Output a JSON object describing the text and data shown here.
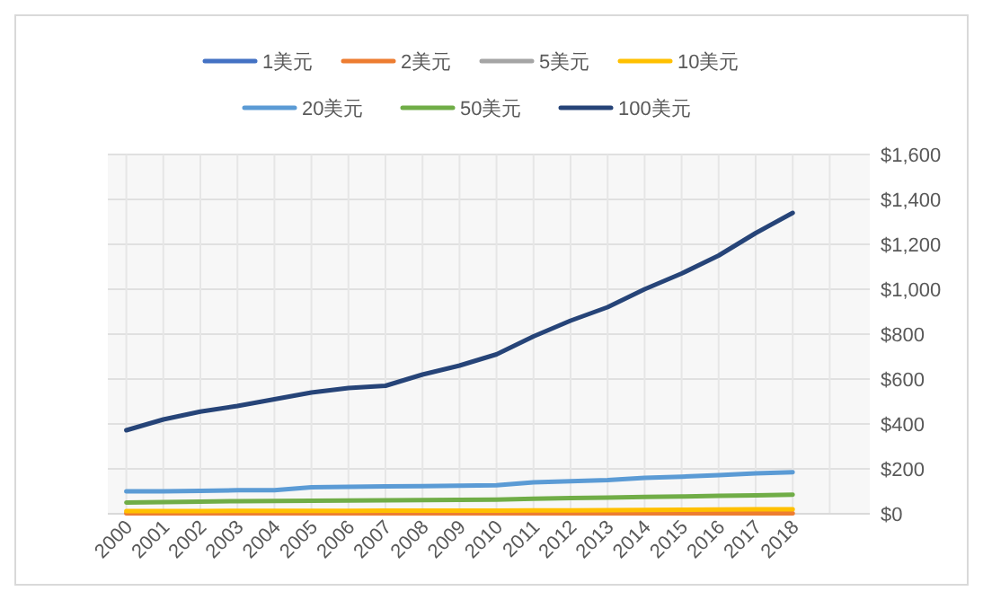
{
  "chart_data": {
    "type": "line",
    "categories": [
      "2000",
      "2001",
      "2002",
      "2003",
      "2004",
      "2005",
      "2006",
      "2007",
      "2008",
      "2009",
      "2010",
      "2011",
      "2012",
      "2013",
      "2014",
      "2015",
      "2016",
      "2017",
      "2018",
      null
    ],
    "series": [
      {
        "name": "1美元",
        "color": "#4472c4",
        "values": [
          null,
          null,
          null,
          null,
          null,
          null,
          null,
          null,
          null,
          null,
          null,
          null,
          null,
          null,
          null,
          null,
          null,
          null,
          null,
          null
        ]
      },
      {
        "name": "2美元",
        "color": "#ed7d31",
        "values": [
          2,
          2,
          2,
          2,
          2,
          2,
          2,
          2,
          2,
          2,
          2,
          2,
          2,
          2,
          2,
          2,
          2,
          2,
          2,
          null
        ]
      },
      {
        "name": "5美元",
        "color": "#a5a5a5",
        "values": [
          null,
          null,
          null,
          null,
          null,
          null,
          null,
          null,
          null,
          null,
          null,
          null,
          null,
          null,
          null,
          null,
          null,
          null,
          null,
          null
        ]
      },
      {
        "name": "10美元",
        "color": "#ffc000",
        "values": [
          12,
          12,
          12,
          13,
          13,
          13,
          13,
          14,
          14,
          14,
          14,
          15,
          15,
          16,
          17,
          18,
          19,
          20,
          20,
          null
        ]
      },
      {
        "name": "20美元",
        "color": "#5b9bd5",
        "values": [
          100,
          100,
          102,
          105,
          105,
          118,
          120,
          122,
          123,
          125,
          127,
          140,
          145,
          150,
          160,
          165,
          172,
          180,
          185,
          null
        ]
      },
      {
        "name": "50美元",
        "color": "#70ad47",
        "values": [
          50,
          52,
          54,
          56,
          57,
          58,
          59,
          60,
          61,
          62,
          63,
          67,
          70,
          72,
          75,
          77,
          80,
          82,
          85,
          null
        ]
      },
      {
        "name": "100美元",
        "color": "#264478",
        "values": [
          372,
          420,
          455,
          480,
          510,
          540,
          560,
          570,
          620,
          660,
          710,
          790,
          860,
          920,
          1000,
          1070,
          1150,
          1250,
          1340,
          null
        ]
      }
    ],
    "ylim": [
      0,
      1600
    ],
    "yticks": [
      {
        "value": 0,
        "label": "$0"
      },
      {
        "value": 200,
        "label": "$200"
      },
      {
        "value": 400,
        "label": "$400"
      },
      {
        "value": 600,
        "label": "$600"
      },
      {
        "value": 800,
        "label": "$800"
      },
      {
        "value": 1000,
        "label": "$1,000"
      },
      {
        "value": 1200,
        "label": "$1,200"
      },
      {
        "value": 1400,
        "label": "$1,400"
      },
      {
        "value": 1600,
        "label": "$1,600"
      }
    ],
    "grid": true,
    "legend": "top",
    "line_style": "solid",
    "marker": "none"
  }
}
